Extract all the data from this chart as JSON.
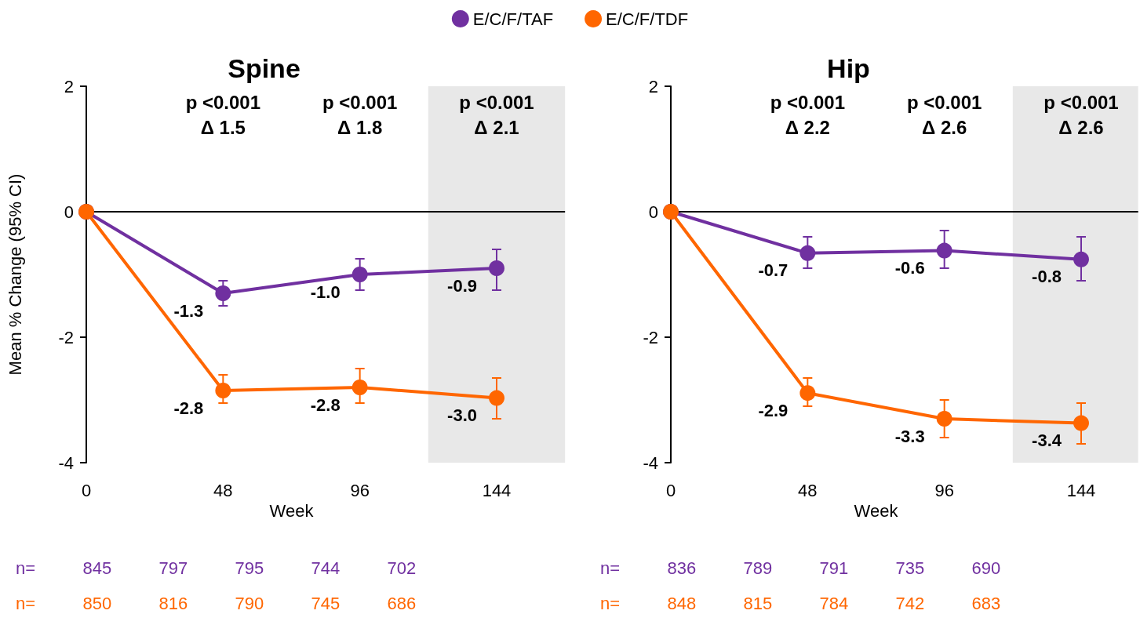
{
  "chart_data": [
    {
      "type": "line",
      "title": "Spine",
      "xlabel": "Week",
      "ylabel": "Mean % Change (95% CI)",
      "x": [
        0,
        48,
        96,
        144
      ],
      "xlim": [
        0,
        168
      ],
      "xticks": [
        0,
        48,
        96,
        144
      ],
      "ylim": [
        -4,
        2
      ],
      "yticks": [
        -4,
        -2,
        0,
        2
      ],
      "grid": false,
      "legend": "top",
      "marker": "circle",
      "line_style": "solid",
      "series": [
        {
          "name": "E/C/F/TAF",
          "color": "#7030a0",
          "values": [
            0,
            -1.3,
            -1.0,
            -0.9
          ],
          "errors": [
            null,
            [
              -1.5,
              -1.1
            ],
            [
              -1.25,
              -0.75
            ],
            [
              -1.25,
              -0.6
            ]
          ],
          "value_labels": [
            null,
            "-1.3",
            "-1.0",
            "-0.9"
          ]
        },
        {
          "name": "E/C/F/TDF",
          "color": "#ff6600",
          "values": [
            0,
            -2.85,
            -2.8,
            -2.97
          ],
          "errors": [
            null,
            [
              -3.05,
              -2.6
            ],
            [
              -3.05,
              -2.5
            ],
            [
              -3.3,
              -2.65
            ]
          ],
          "value_labels": [
            null,
            "-2.8",
            "-2.8",
            "-3.0"
          ]
        }
      ],
      "ref_lines": [
        {
          "axis": "y",
          "value": 0,
          "color": "#000000"
        }
      ],
      "bands": [
        {
          "axis": "x",
          "from": 120,
          "to": 168,
          "color": "#e8e8e8"
        }
      ],
      "annotations": [
        "p <0.001\nΔ 1.5",
        "p <0.001\nΔ 1.8",
        "p <0.001\nΔ 2.1",
        "n=   845   797   795   744   702",
        "n=   850   816   790   745   686"
      ]
    },
    {
      "type": "line",
      "title": "Hip",
      "xlabel": "Week",
      "x": [
        0,
        48,
        96,
        144
      ],
      "xlim": [
        0,
        164
      ],
      "xticks": [
        0,
        48,
        96,
        144
      ],
      "ylim": [
        -4,
        2
      ],
      "yticks": [
        -4,
        -2,
        0,
        2
      ],
      "grid": false,
      "legend": false,
      "marker": "circle",
      "line_style": "solid",
      "series": [
        {
          "color": "#7030a0",
          "values": [
            0,
            -0.66,
            -0.62,
            -0.76
          ],
          "errors": [
            null,
            [
              -0.9,
              -0.4
            ],
            [
              -0.9,
              -0.3
            ],
            [
              -1.1,
              -0.4
            ]
          ],
          "value_labels": [
            null,
            "-0.7",
            "-0.6",
            "-0.8"
          ]
        },
        {
          "color": "#ff6600",
          "values": [
            0,
            -2.89,
            -3.3,
            -3.37
          ],
          "errors": [
            null,
            [
              -3.1,
              -2.65
            ],
            [
              -3.6,
              -3.0
            ],
            [
              -3.7,
              -3.05
            ]
          ],
          "value_labels": [
            null,
            "-2.9",
            "-3.3",
            "-3.4"
          ]
        }
      ],
      "ref_lines": [
        {
          "axis": "y",
          "value": 0,
          "color": "#000000"
        }
      ],
      "bands": [
        {
          "axis": "x",
          "from": 120,
          "to": 164,
          "color": "#e8e8e8"
        }
      ],
      "annotations": [
        "p <0.001\nΔ 2.2",
        "p <0.001\nΔ 2.6",
        "p <0.001\nΔ 2.6",
        "n=   836   789   791   735   690",
        "n=   848   815   784   742   683"
      ]
    }
  ]
}
